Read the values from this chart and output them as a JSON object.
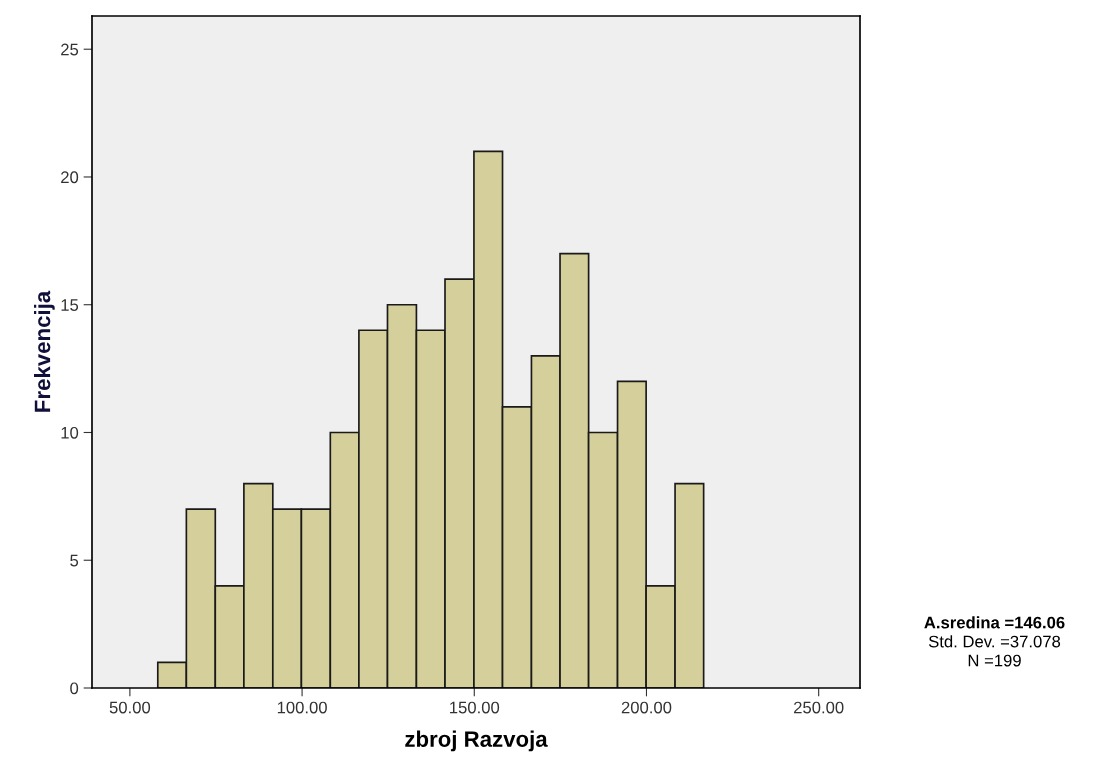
{
  "chart_data": {
    "type": "histogram",
    "xlabel": "zbroj Razvoja",
    "ylabel": "Frekvencija",
    "bins": [
      58.1,
      66.4,
      74.8,
      83.1,
      91.5,
      99.8,
      108.2,
      116.5,
      124.8,
      133.2,
      141.5,
      149.9,
      158.2,
      166.6,
      174.9,
      183.2,
      191.6,
      199.9,
      208.3,
      216.6
    ],
    "values": [
      1,
      7,
      4,
      8,
      7,
      7,
      10,
      14,
      15,
      14,
      16,
      21,
      11,
      13,
      17,
      10,
      12,
      4,
      8
    ],
    "color": "#d5d09b",
    "xlim": [
      39,
      262
    ],
    "xticks": [
      {
        "value": 50,
        "label": "50.00"
      },
      {
        "value": 100,
        "label": "100.00"
      },
      {
        "value": 150,
        "label": "150.00"
      },
      {
        "value": 200,
        "label": "200.00"
      },
      {
        "value": 250,
        "label": "250.00"
      }
    ],
    "ylim": [
      0,
      26.3
    ],
    "yticks": [
      0,
      5,
      10,
      15,
      20,
      25
    ],
    "grid": false,
    "annotations": [
      "A.sredina =146.06",
      "Std. Dev. =37.078",
      "N =199"
    ]
  }
}
